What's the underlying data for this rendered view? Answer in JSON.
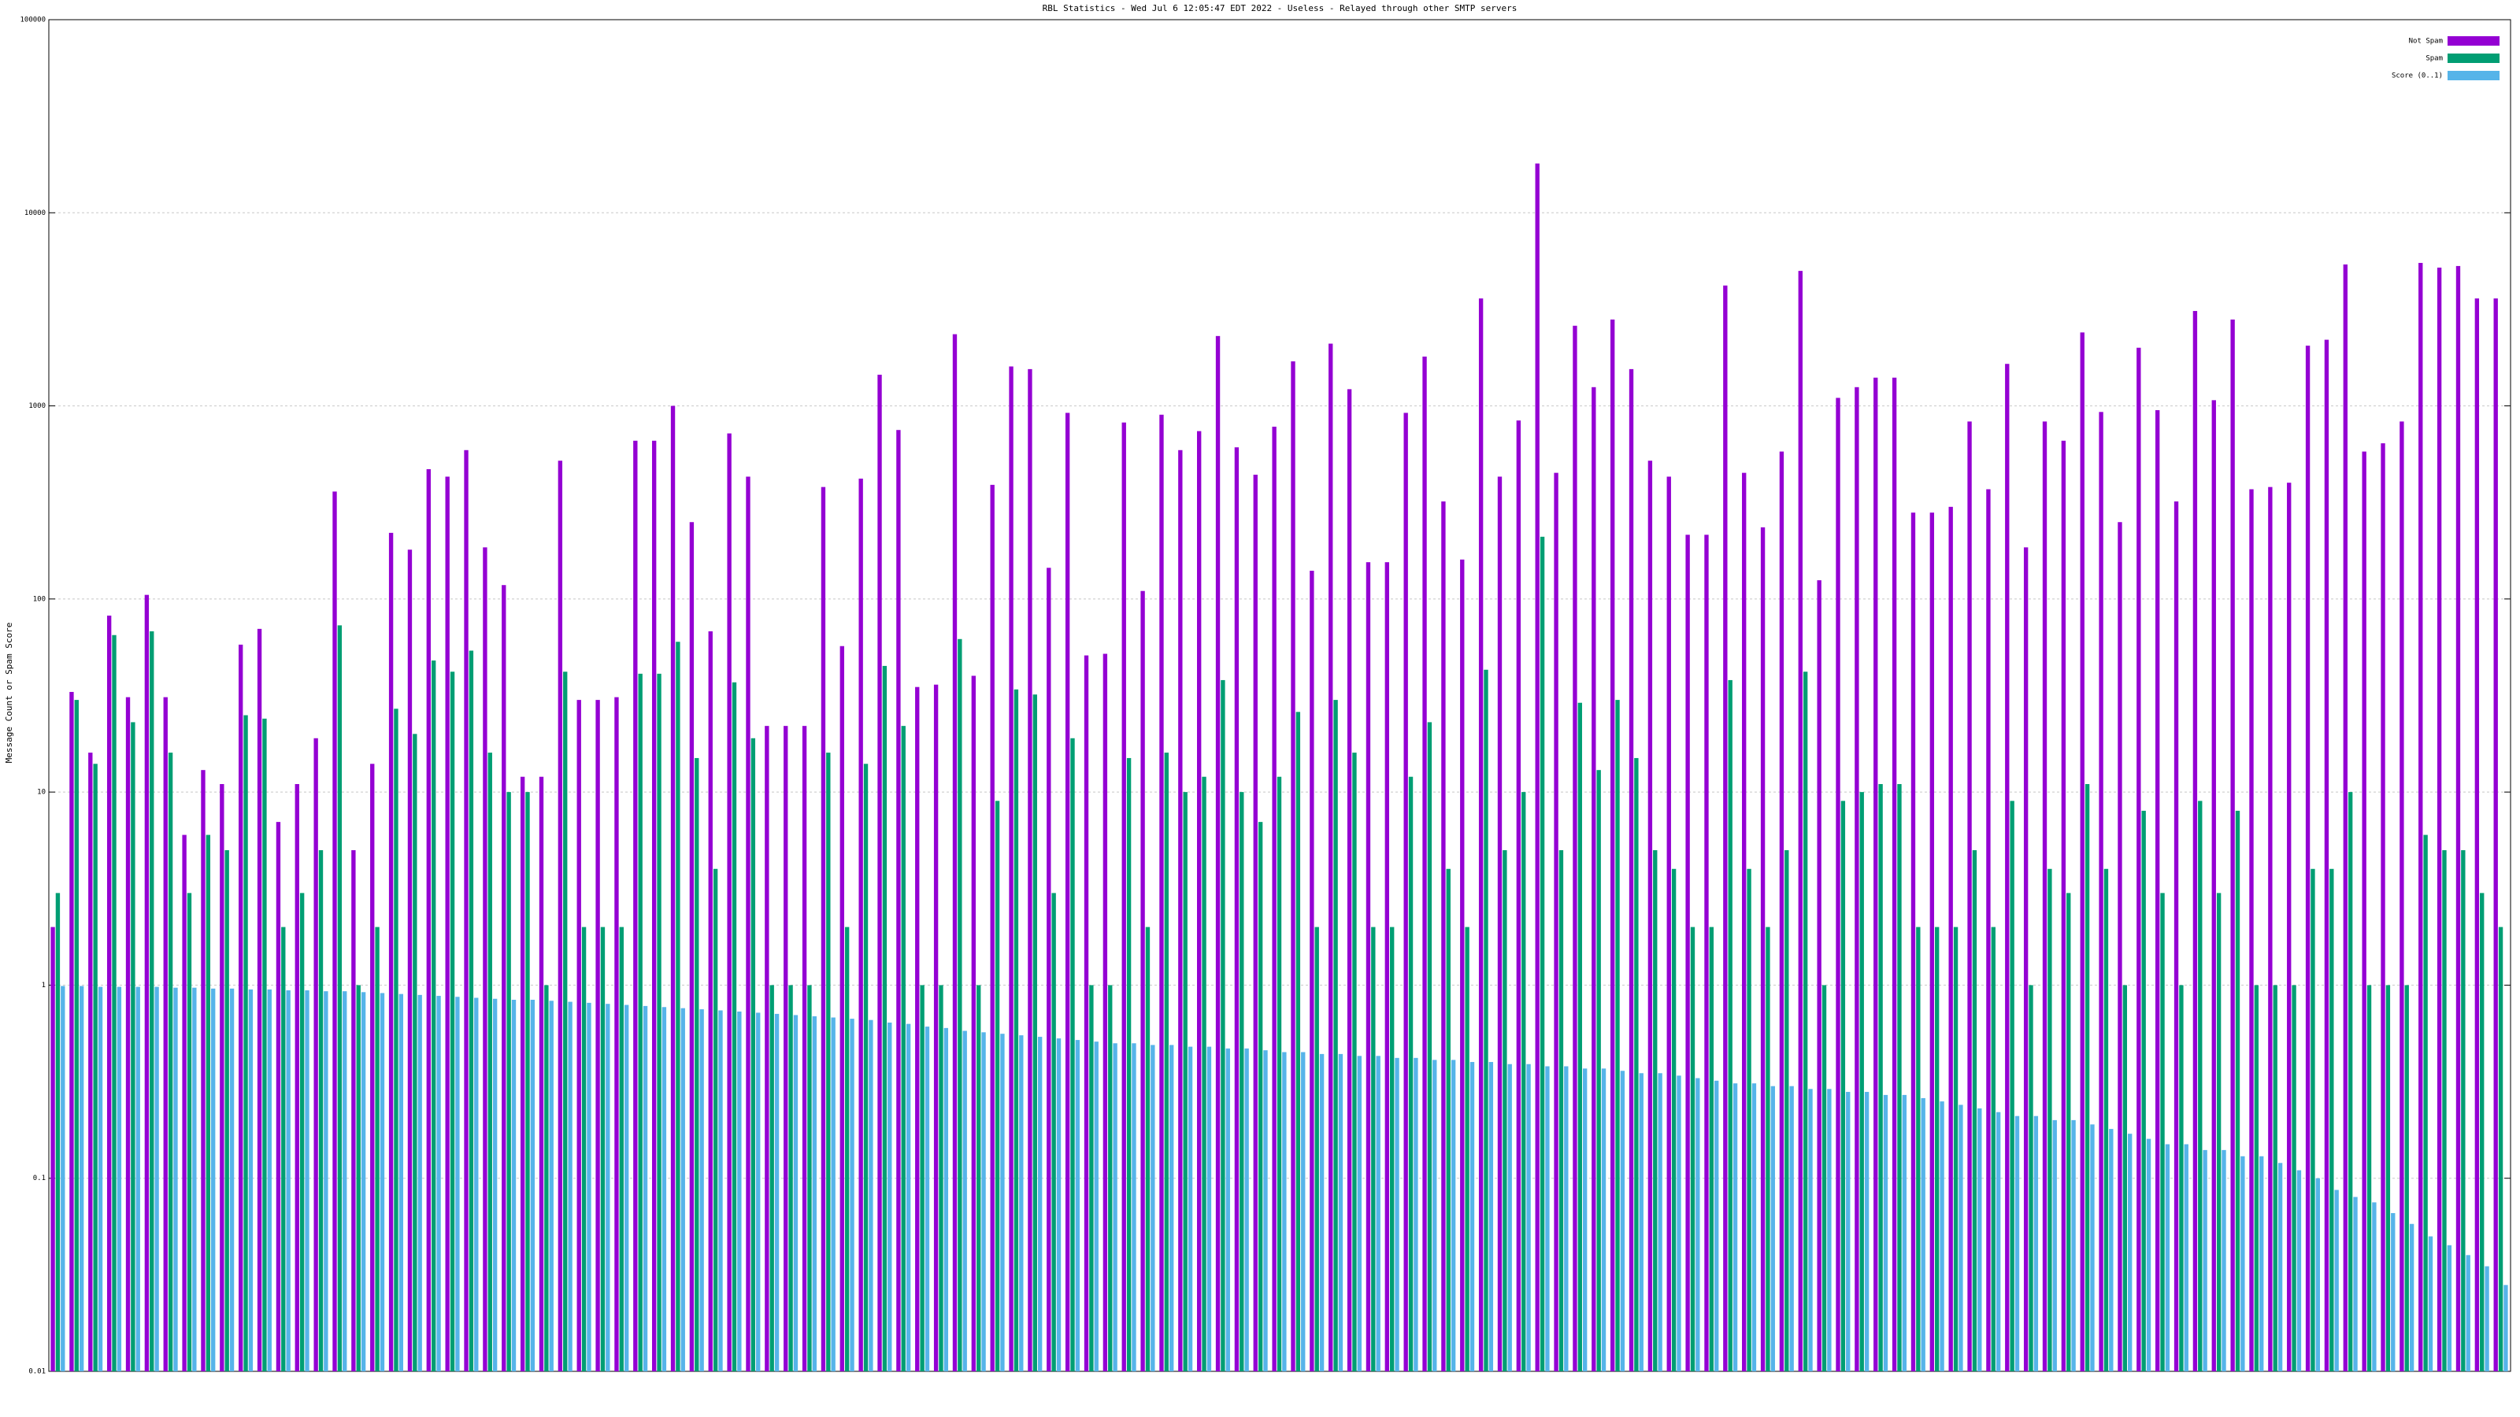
{
  "chart_data": {
    "type": "bar",
    "title": "RBL Statistics - Wed Jul  6 12:05:47 EDT 2022 - Useless - Relayed through other SMTP servers",
    "y_label": "Message Count or Spam Score",
    "log_scale": true,
    "grid": true,
    "legend_position": "top right",
    "ylim": [
      0.01,
      100000
    ],
    "yticks": [
      0.01,
      0.1,
      1,
      10,
      100,
      1000,
      10000,
      100000
    ],
    "categories": [
      null,
      null,
      null,
      null,
      null,
      null,
      null,
      null,
      null,
      null,
      null,
      null,
      null,
      null,
      null,
      null,
      null,
      null,
      null,
      null,
      null,
      null,
      null,
      null,
      null,
      null,
      null,
      null,
      null,
      null,
      null,
      null,
      null,
      null,
      null,
      null,
      null,
      null,
      null,
      null,
      null,
      null,
      null,
      null,
      null,
      null,
      null,
      null,
      null,
      null,
      null,
      null,
      null,
      null,
      null,
      null,
      null,
      null,
      null,
      null,
      null,
      null,
      null,
      null,
      null,
      null,
      null,
      null,
      null,
      null,
      null,
      null,
      null,
      null,
      null,
      null,
      null,
      null,
      null,
      null,
      null,
      null,
      null,
      null,
      null,
      null,
      null,
      null,
      null,
      null,
      null,
      null,
      null,
      null,
      null,
      null,
      null,
      null,
      null,
      null,
      null,
      null,
      null,
      null,
      null,
      null,
      null,
      null,
      null,
      null,
      null,
      null,
      null,
      null,
      null,
      null,
      null,
      null,
      null,
      null,
      null,
      null,
      null,
      null,
      null,
      null,
      null,
      null,
      null,
      null,
      null
    ],
    "series": [
      {
        "name": "Not Spam",
        "color": "#9400d3",
        "values": [
          2,
          33,
          16,
          82,
          31,
          105,
          31,
          6,
          13,
          11,
          58,
          70,
          7,
          11,
          19,
          360,
          5,
          14,
          220,
          180,
          470,
          430,
          590,
          185,
          118,
          12,
          12,
          520,
          30,
          30,
          31,
          660,
          660,
          1000,
          250,
          68,
          720,
          430,
          22,
          22,
          22,
          380,
          57,
          420,
          1450,
          750,
          35,
          36,
          2350,
          40,
          390,
          1600,
          1550,
          145,
          920,
          51,
          52,
          820,
          110,
          900,
          590,
          740,
          2300,
          610,
          440,
          780,
          1700,
          140,
          2100,
          1220,
          155,
          155,
          920,
          1800,
          320,
          160,
          3600,
          430,
          840,
          18000,
          450,
          2600,
          1250,
          2800,
          1550,
          520,
          430,
          215,
          215,
          4200,
          450,
          235,
          580,
          5000,
          125,
          1100,
          1250,
          1400,
          1400,
          280,
          280,
          300,
          830,
          370,
          1650,
          185,
          830,
          660,
          2400,
          930,
          250,
          2000,
          950,
          320,
          3100,
          1070,
          2800,
          370,
          380,
          400,
          2050,
          2200,
          5400,
          580,
          640,
          830,
          5500,
          5200,
          5300,
          3600,
          3600
        ]
      },
      {
        "name": "Spam",
        "color": "#009e73",
        "values": [
          3,
          30,
          14,
          65,
          23,
          68,
          16,
          3,
          6,
          5,
          25,
          24,
          2,
          3,
          5,
          73,
          1,
          2,
          27,
          20,
          48,
          42,
          54,
          16,
          10,
          10,
          1,
          42,
          2,
          2,
          2,
          41,
          41,
          60,
          15,
          4,
          37,
          19,
          1,
          1,
          1,
          16,
          2,
          14,
          45,
          22,
          1,
          1,
          62,
          1,
          9,
          34,
          32,
          3,
          19,
          1,
          1,
          15,
          2,
          16,
          10,
          12,
          38,
          10,
          7,
          12,
          26,
          2,
          30,
          16,
          2,
          2,
          12,
          23,
          4,
          2,
          43,
          5,
          10,
          210,
          5,
          29,
          13,
          30,
          15,
          5,
          4,
          2,
          2,
          38,
          4,
          2,
          5,
          42,
          1,
          9,
          10,
          11,
          11,
          2,
          2,
          2,
          5,
          2,
          9,
          1,
          4,
          3,
          11,
          4,
          1,
          8,
          3,
          1,
          9,
          3,
          8,
          1,
          1,
          1,
          4,
          4,
          10,
          1,
          1,
          1,
          6,
          5,
          5,
          3,
          2
        ]
      },
      {
        "name": "Score (0..1)",
        "color": "#56b4e9",
        "values": [
          0.99,
          0.99,
          0.98,
          0.98,
          0.98,
          0.98,
          0.97,
          0.97,
          0.96,
          0.96,
          0.95,
          0.95,
          0.94,
          0.94,
          0.93,
          0.93,
          0.92,
          0.91,
          0.9,
          0.89,
          0.88,
          0.87,
          0.86,
          0.85,
          0.84,
          0.84,
          0.83,
          0.82,
          0.81,
          0.8,
          0.79,
          0.78,
          0.77,
          0.76,
          0.75,
          0.74,
          0.73,
          0.72,
          0.71,
          0.7,
          0.69,
          0.68,
          0.67,
          0.66,
          0.64,
          0.63,
          0.61,
          0.6,
          0.58,
          0.57,
          0.56,
          0.55,
          0.54,
          0.53,
          0.52,
          0.51,
          0.5,
          0.5,
          0.49,
          0.49,
          0.48,
          0.48,
          0.47,
          0.47,
          0.46,
          0.45,
          0.45,
          0.44,
          0.44,
          0.43,
          0.43,
          0.42,
          0.42,
          0.41,
          0.41,
          0.4,
          0.4,
          0.39,
          0.39,
          0.38,
          0.38,
          0.37,
          0.37,
          0.36,
          0.35,
          0.35,
          0.34,
          0.33,
          0.32,
          0.31,
          0.31,
          0.3,
          0.3,
          0.29,
          0.29,
          0.28,
          0.28,
          0.27,
          0.27,
          0.26,
          0.25,
          0.24,
          0.23,
          0.22,
          0.21,
          0.21,
          0.2,
          0.2,
          0.19,
          0.18,
          0.17,
          0.16,
          0.15,
          0.15,
          0.14,
          0.14,
          0.13,
          0.13,
          0.12,
          0.11,
          0.1,
          0.087,
          0.08,
          0.075,
          0.066,
          0.058,
          0.05,
          0.045,
          0.04,
          0.035,
          0.028
        ]
      }
    ]
  }
}
